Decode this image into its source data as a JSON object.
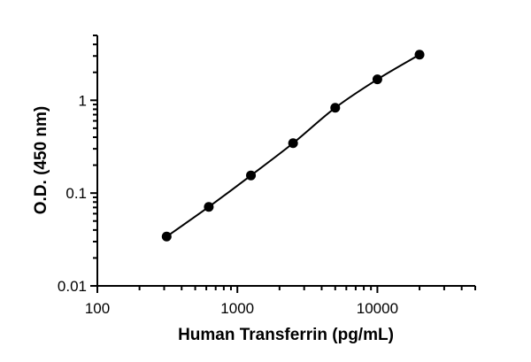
{
  "chart_data": {
    "type": "scatter",
    "title": "",
    "xlabel": "Human Transferrin (pg/mL)",
    "ylabel": "O.D. (450 nm)",
    "xscale": "log",
    "yscale": "log",
    "xlim": [
      100,
      50000
    ],
    "ylim": [
      0.01,
      5
    ],
    "xticks": [
      100,
      1000,
      10000
    ],
    "xtick_labels": [
      "100",
      "1000",
      "10000"
    ],
    "yticks": [
      0.01,
      0.1,
      1
    ],
    "ytick_labels": [
      "0.01",
      "0.1",
      "1"
    ],
    "grid": false,
    "legend": "none",
    "series": [
      {
        "x": [
          312.5,
          625,
          1250,
          2500,
          5000,
          10000,
          20000
        ],
        "y": [
          0.034,
          0.071,
          0.155,
          0.345,
          0.83,
          1.68,
          3.1
        ],
        "marker": "circle",
        "fitted_curve": true,
        "color": "#000000"
      }
    ]
  }
}
